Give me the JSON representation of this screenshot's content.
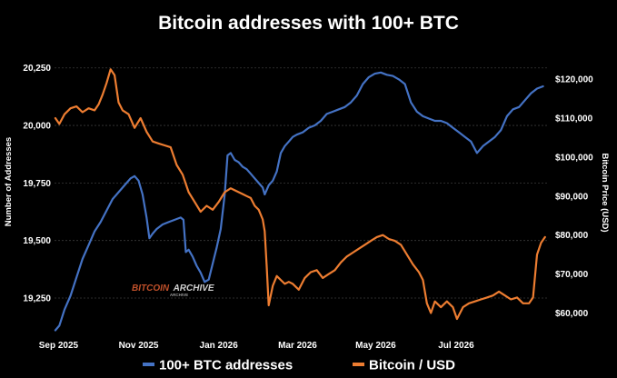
{
  "chart_data": {
    "type": "line",
    "title": "Bitcoin addresses with 100+ BTC",
    "ylabel": "Number of Addresses",
    "y2label": "Bitcoin Price (USD)",
    "ylim": [
      19100,
      20320
    ],
    "y2lim": [
      55000,
      127000
    ],
    "xlim": [
      0,
      12.3
    ],
    "x_ticks": [
      {
        "label": "Sep 2025",
        "pos": 0.1
      },
      {
        "label": "Nov 2025",
        "pos": 2.1
      },
      {
        "label": "Jan 2026",
        "pos": 4.1
      },
      {
        "label": "Mar 2026",
        "pos": 6.07
      },
      {
        "label": "May 2026",
        "pos": 8.02
      },
      {
        "label": "Jul 2026",
        "pos": 10.03
      }
    ],
    "y_ticks": [
      {
        "label": "20,250",
        "value": 20250
      },
      {
        "label": "20,000",
        "value": 20000
      },
      {
        "label": "19,750",
        "value": 19750
      },
      {
        "label": "19,500",
        "value": 19500
      },
      {
        "label": "19,250",
        "value": 19250
      }
    ],
    "y2_ticks": [
      {
        "label": "$120,000",
        "value": 120000
      },
      {
        "label": "$110,000",
        "value": 110000
      },
      {
        "label": "$100,000",
        "value": 100000
      },
      {
        "label": "$90,000",
        "value": 90000
      },
      {
        "label": "$80,000",
        "value": 80000
      },
      {
        "label": "$70,000",
        "value": 70000
      },
      {
        "label": "$60,000",
        "value": 60000
      }
    ],
    "legend_position": "bottom-center",
    "series": [
      {
        "name": "100+ BTC addresses",
        "axis": "left",
        "color": "#4472c4",
        "points": [
          [
            0.02,
            19110
          ],
          [
            0.12,
            19130
          ],
          [
            0.25,
            19200
          ],
          [
            0.4,
            19260
          ],
          [
            0.55,
            19340
          ],
          [
            0.7,
            19420
          ],
          [
            0.85,
            19480
          ],
          [
            1.0,
            19540
          ],
          [
            1.15,
            19580
          ],
          [
            1.3,
            19630
          ],
          [
            1.45,
            19680
          ],
          [
            1.6,
            19710
          ],
          [
            1.75,
            19740
          ],
          [
            1.9,
            19770
          ],
          [
            2.0,
            19780
          ],
          [
            2.1,
            19760
          ],
          [
            2.2,
            19700
          ],
          [
            2.3,
            19600
          ],
          [
            2.37,
            19510
          ],
          [
            2.45,
            19530
          ],
          [
            2.55,
            19550
          ],
          [
            2.7,
            19570
          ],
          [
            2.85,
            19580
          ],
          [
            3.0,
            19590
          ],
          [
            3.15,
            19600
          ],
          [
            3.22,
            19590
          ],
          [
            3.28,
            19450
          ],
          [
            3.35,
            19460
          ],
          [
            3.45,
            19430
          ],
          [
            3.55,
            19390
          ],
          [
            3.65,
            19360
          ],
          [
            3.75,
            19320
          ],
          [
            3.85,
            19330
          ],
          [
            3.95,
            19400
          ],
          [
            4.05,
            19470
          ],
          [
            4.15,
            19550
          ],
          [
            4.25,
            19700
          ],
          [
            4.32,
            19870
          ],
          [
            4.4,
            19880
          ],
          [
            4.5,
            19850
          ],
          [
            4.6,
            19840
          ],
          [
            4.7,
            19820
          ],
          [
            4.8,
            19810
          ],
          [
            4.9,
            19790
          ],
          [
            5.0,
            19770
          ],
          [
            5.1,
            19750
          ],
          [
            5.2,
            19730
          ],
          [
            5.25,
            19700
          ],
          [
            5.35,
            19740
          ],
          [
            5.45,
            19760
          ],
          [
            5.55,
            19800
          ],
          [
            5.65,
            19880
          ],
          [
            5.75,
            19910
          ],
          [
            5.85,
            19930
          ],
          [
            5.95,
            19950
          ],
          [
            6.05,
            19960
          ],
          [
            6.2,
            19970
          ],
          [
            6.35,
            19990
          ],
          [
            6.5,
            20000
          ],
          [
            6.65,
            20020
          ],
          [
            6.8,
            20050
          ],
          [
            6.95,
            20060
          ],
          [
            7.1,
            20070
          ],
          [
            7.25,
            20080
          ],
          [
            7.4,
            20100
          ],
          [
            7.55,
            20130
          ],
          [
            7.7,
            20180
          ],
          [
            7.85,
            20210
          ],
          [
            8.0,
            20225
          ],
          [
            8.15,
            20230
          ],
          [
            8.3,
            20220
          ],
          [
            8.45,
            20215
          ],
          [
            8.6,
            20200
          ],
          [
            8.75,
            20180
          ],
          [
            8.9,
            20100
          ],
          [
            9.05,
            20060
          ],
          [
            9.2,
            20040
          ],
          [
            9.35,
            20030
          ],
          [
            9.5,
            20020
          ],
          [
            9.65,
            20020
          ],
          [
            9.8,
            20010
          ],
          [
            9.95,
            19990
          ],
          [
            10.1,
            19970
          ],
          [
            10.25,
            19950
          ],
          [
            10.4,
            19930
          ],
          [
            10.55,
            19880
          ],
          [
            10.7,
            19910
          ],
          [
            10.85,
            19930
          ],
          [
            11.0,
            19950
          ],
          [
            11.15,
            19980
          ],
          [
            11.3,
            20040
          ],
          [
            11.45,
            20070
          ],
          [
            11.6,
            20080
          ],
          [
            11.75,
            20110
          ],
          [
            11.9,
            20140
          ],
          [
            12.05,
            20160
          ],
          [
            12.2,
            20170
          ]
        ]
      },
      {
        "name": "Bitcoin / USD",
        "axis": "right",
        "color": "#ed7d31",
        "points": [
          [
            0.02,
            110000
          ],
          [
            0.12,
            108500
          ],
          [
            0.25,
            111000
          ],
          [
            0.4,
            112500
          ],
          [
            0.55,
            113000
          ],
          [
            0.7,
            111500
          ],
          [
            0.85,
            112500
          ],
          [
            1.0,
            112000
          ],
          [
            1.1,
            113500
          ],
          [
            1.2,
            116000
          ],
          [
            1.3,
            119000
          ],
          [
            1.4,
            122500
          ],
          [
            1.5,
            121000
          ],
          [
            1.6,
            114000
          ],
          [
            1.7,
            112000
          ],
          [
            1.85,
            111000
          ],
          [
            2.0,
            107500
          ],
          [
            2.15,
            110000
          ],
          [
            2.3,
            106500
          ],
          [
            2.45,
            104000
          ],
          [
            2.6,
            103500
          ],
          [
            2.75,
            103000
          ],
          [
            2.9,
            102500
          ],
          [
            3.05,
            98000
          ],
          [
            3.2,
            95500
          ],
          [
            3.35,
            91000
          ],
          [
            3.5,
            88500
          ],
          [
            3.65,
            86000
          ],
          [
            3.8,
            87500
          ],
          [
            3.95,
            86500
          ],
          [
            4.1,
            88500
          ],
          [
            4.25,
            91000
          ],
          [
            4.4,
            92000
          ],
          [
            4.5,
            91500
          ],
          [
            4.6,
            91000
          ],
          [
            4.7,
            90500
          ],
          [
            4.8,
            90000
          ],
          [
            4.9,
            89500
          ],
          [
            5.0,
            87500
          ],
          [
            5.1,
            86500
          ],
          [
            5.2,
            84000
          ],
          [
            5.25,
            81000
          ],
          [
            5.3,
            72000
          ],
          [
            5.35,
            62000
          ],
          [
            5.45,
            67000
          ],
          [
            5.55,
            69500
          ],
          [
            5.65,
            68500
          ],
          [
            5.75,
            67500
          ],
          [
            5.85,
            68000
          ],
          [
            5.95,
            67500
          ],
          [
            6.1,
            66000
          ],
          [
            6.25,
            69000
          ],
          [
            6.4,
            70500
          ],
          [
            6.55,
            71000
          ],
          [
            6.7,
            69000
          ],
          [
            6.85,
            70000
          ],
          [
            7.0,
            71000
          ],
          [
            7.15,
            73000
          ],
          [
            7.3,
            74500
          ],
          [
            7.45,
            75500
          ],
          [
            7.6,
            76500
          ],
          [
            7.75,
            77500
          ],
          [
            7.9,
            78500
          ],
          [
            8.05,
            79500
          ],
          [
            8.2,
            80000
          ],
          [
            8.35,
            79000
          ],
          [
            8.5,
            78500
          ],
          [
            8.65,
            77500
          ],
          [
            8.8,
            75000
          ],
          [
            8.95,
            72500
          ],
          [
            9.1,
            70500
          ],
          [
            9.2,
            68500
          ],
          [
            9.3,
            62500
          ],
          [
            9.4,
            60000
          ],
          [
            9.5,
            63000
          ],
          [
            9.65,
            61500
          ],
          [
            9.8,
            63000
          ],
          [
            9.95,
            61500
          ],
          [
            10.05,
            58500
          ],
          [
            10.2,
            61500
          ],
          [
            10.35,
            62500
          ],
          [
            10.5,
            63000
          ],
          [
            10.65,
            63500
          ],
          [
            10.8,
            64000
          ],
          [
            10.95,
            64500
          ],
          [
            11.1,
            65500
          ],
          [
            11.25,
            64500
          ],
          [
            11.4,
            63500
          ],
          [
            11.55,
            64000
          ],
          [
            11.7,
            62500
          ],
          [
            11.85,
            62500
          ],
          [
            11.95,
            64000
          ],
          [
            12.05,
            75000
          ],
          [
            12.15,
            78000
          ],
          [
            12.25,
            79500
          ]
        ]
      }
    ]
  },
  "watermark": {
    "brand": "BITCOIN",
    "suffix": "ARCHIVE",
    "tag": "ARCHIVE"
  }
}
